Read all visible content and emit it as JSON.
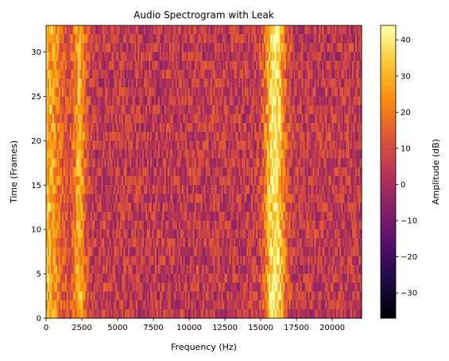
{
  "chart_data": {
    "type": "heatmap",
    "title": "Audio Spectrogram with Leak",
    "xlabel": "Frequency (Hz)",
    "ylabel": "Time (Frames)",
    "colorbar_label": "Amplitude (dB)",
    "colormap": "inferno",
    "xlim": [
      0,
      22050
    ],
    "ylim": [
      0,
      33
    ],
    "xticks": [
      0,
      2500,
      5000,
      7500,
      10000,
      12500,
      15000,
      17500,
      20000
    ],
    "yticks": [
      0,
      5,
      10,
      15,
      20,
      25,
      30
    ],
    "color_range": [
      -37,
      44
    ],
    "colorbar_ticks": [
      -30,
      -20,
      -10,
      0,
      10,
      20,
      30,
      40
    ],
    "background_level_db": 5,
    "bands": [
      {
        "center_hz": 0,
        "width_hz": 1200,
        "peak_db": 30
      },
      {
        "center_hz": 2300,
        "width_hz": 500,
        "peak_db": 28
      },
      {
        "center_hz": 16000,
        "width_hz": 700,
        "peak_db": 42
      }
    ]
  }
}
